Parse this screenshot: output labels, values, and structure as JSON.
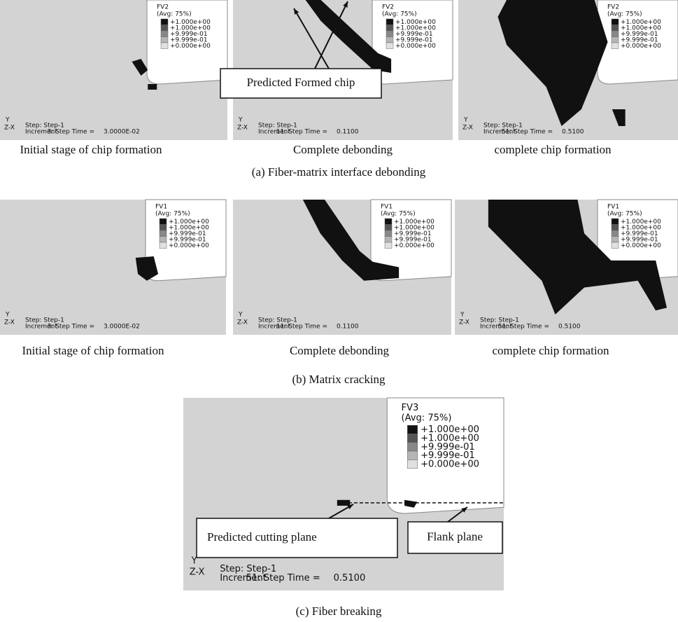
{
  "sections": [
    {
      "panels": [
        {
          "variable": "FV2",
          "average": "(Avg: 75%)",
          "legend": [
            "+1.000e+00",
            "+1.000e+00",
            "+9.999e-01",
            "+9.999e-01",
            "+0.000e+00"
          ],
          "axis_y": "Y",
          "axis_zx": "Z-X",
          "step": "Step: Step-1",
          "increment": "Increment",
          "step_time": "3: Step Time =",
          "time_value": "3.0000E-02"
        },
        {
          "variable": "FV2",
          "average": "(Avg: 75%)",
          "legend": [
            "+1.000e+00",
            "+1.000e+00",
            "+9.999e-01",
            "+9.999e-01",
            "+0.000e+00"
          ],
          "axis_y": "Y",
          "axis_zx": "Z-X",
          "step": "Step: Step-1",
          "increment": "Increment",
          "step_time": "11: Step Time =",
          "time_value": "0.1100",
          "annotations": [
            "Predicted Formed chip"
          ]
        },
        {
          "variable": "FV2",
          "average": "(Avg: 75%)",
          "legend": [
            "+1.000e+00",
            "+1.000e+00",
            "+9.999e-01",
            "+9.999e-01",
            "+0.000e+00"
          ],
          "axis_y": "Y",
          "axis_zx": "Z-X",
          "step": "Step: Step-1",
          "increment": "Increment",
          "step_time": "51: Step Time =",
          "time_value": "0.5100"
        }
      ],
      "captions": [
        "Initial stage of chip formation",
        "Complete debonding",
        "complete chip formation"
      ],
      "label": "(a) Fiber-matrix interface debonding"
    },
    {
      "panels": [
        {
          "variable": "FV1",
          "average": "(Avg: 75%)",
          "legend": [
            "+1.000e+00",
            "+1.000e+00",
            "+9.999e-01",
            "+9.999e-01",
            "+0.000e+00"
          ],
          "axis_y": "Y",
          "axis_zx": "Z-X",
          "step": "Step: Step-1",
          "increment": "Increment",
          "step_time": "3: Step Time =",
          "time_value": "3.0000E-02"
        },
        {
          "variable": "FV1",
          "average": "(Avg: 75%)",
          "legend": [
            "+1.000e+00",
            "+1.000e+00",
            "+9.999e-01",
            "+9.999e-01",
            "+0.000e+00"
          ],
          "axis_y": "Y",
          "axis_zx": "Z-X",
          "step": "Step: Step-1",
          "increment": "Increment",
          "step_time": "11: Step Time =",
          "time_value": "0.1100"
        },
        {
          "variable": "FV1",
          "average": "(Avg: 75%)",
          "legend": [
            "+1.000e+00",
            "+1.000e+00",
            "+9.999e-01",
            "+9.999e-01",
            "+0.000e+00"
          ],
          "axis_y": "Y",
          "axis_zx": "Z-X",
          "step": "Step: Step-1",
          "increment": "Increment",
          "step_time": "51: Step Time =",
          "time_value": "0.5100"
        }
      ],
      "captions": [
        "Initial stage of chip formation",
        "Complete debonding",
        "complete chip formation"
      ],
      "label": "(b) Matrix cracking"
    },
    {
      "panels": [
        {
          "variable": "FV3",
          "average": "(Avg: 75%)",
          "legend": [
            "+1.000e+00",
            "+1.000e+00",
            "+9.999e-01",
            "+9.999e-01",
            "+0.000e+00"
          ],
          "axis_y": "Y",
          "axis_zx": "Z-X",
          "step": "Step: Step-1",
          "increment": "Increment",
          "step_time": "51: Step Time =",
          "time_value": "0.5100",
          "annotations": [
            "Predicted cutting plane",
            "Flank plane"
          ]
        }
      ],
      "label": "(c) Fiber breaking"
    }
  ]
}
